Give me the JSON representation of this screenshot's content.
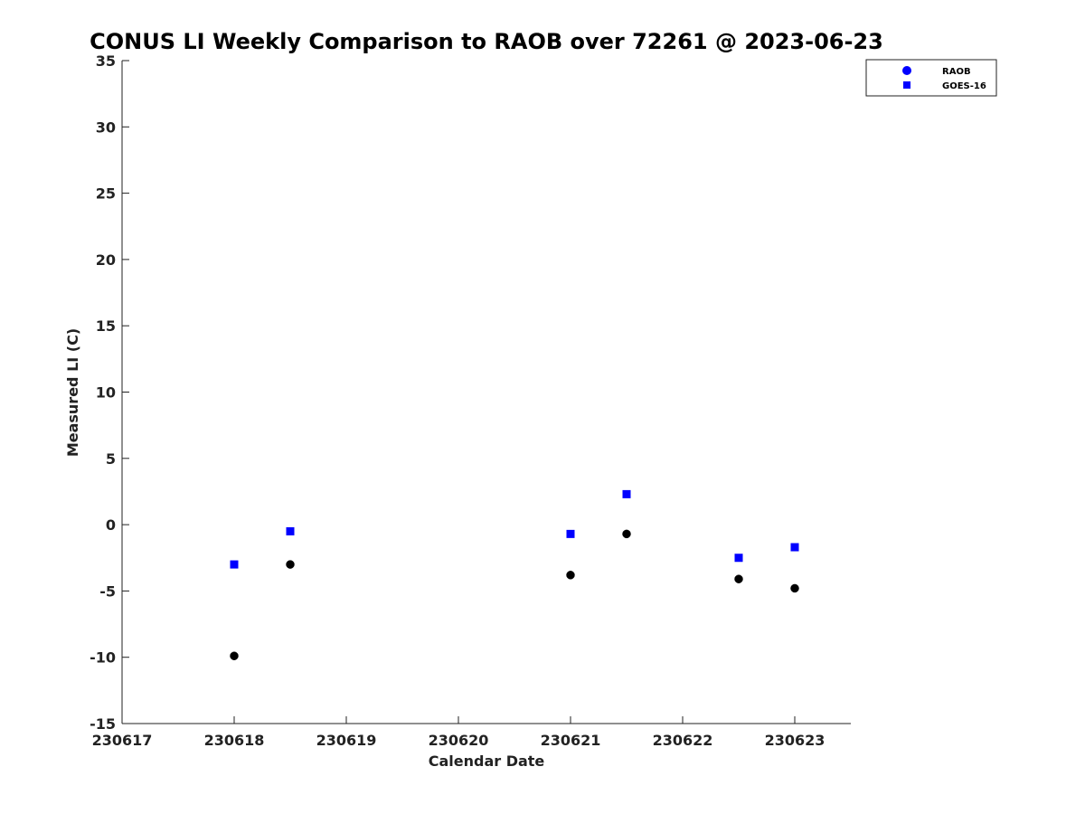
{
  "chart_data": {
    "type": "scatter",
    "title": "CONUS LI Weekly Comparison to RAOB over 72261 @ 2023-06-23",
    "xlabel": "Calendar Date",
    "ylabel": "Measured LI (C)",
    "xlim": [
      230617,
      230623.5
    ],
    "ylim": [
      -15,
      35
    ],
    "xticks": [
      230617,
      230618,
      230619,
      230620,
      230621,
      230622,
      230623
    ],
    "xtick_labels": [
      "230617",
      "230618",
      "230619",
      "230620",
      "230621",
      "230622",
      "230623"
    ],
    "yticks": [
      -15,
      -10,
      -5,
      0,
      5,
      10,
      15,
      20,
      25,
      30,
      35
    ],
    "ytick_labels": [
      "-15",
      "-10",
      "-5",
      "0",
      "5",
      "10",
      "15",
      "20",
      "25",
      "30",
      "35"
    ],
    "grid": false,
    "legend_position": "top-right",
    "series": [
      {
        "name": "RAOB",
        "marker": "circle",
        "color": "#000000",
        "legend_color": "#0000ff",
        "points": [
          {
            "x": 230618.0,
            "y": -9.9
          },
          {
            "x": 230618.5,
            "y": -3.0
          },
          {
            "x": 230621.0,
            "y": -3.8
          },
          {
            "x": 230621.5,
            "y": -0.7
          },
          {
            "x": 230622.5,
            "y": -4.1
          },
          {
            "x": 230623.0,
            "y": -4.8
          }
        ]
      },
      {
        "name": "GOES-16",
        "marker": "square",
        "color": "#0000ff",
        "legend_color": "#0000ff",
        "points": [
          {
            "x": 230618.0,
            "y": -3.0
          },
          {
            "x": 230618.5,
            "y": -0.5
          },
          {
            "x": 230621.0,
            "y": -0.7
          },
          {
            "x": 230621.5,
            "y": 2.3
          },
          {
            "x": 230622.5,
            "y": -2.5
          },
          {
            "x": 230623.0,
            "y": -1.7
          }
        ]
      }
    ]
  }
}
